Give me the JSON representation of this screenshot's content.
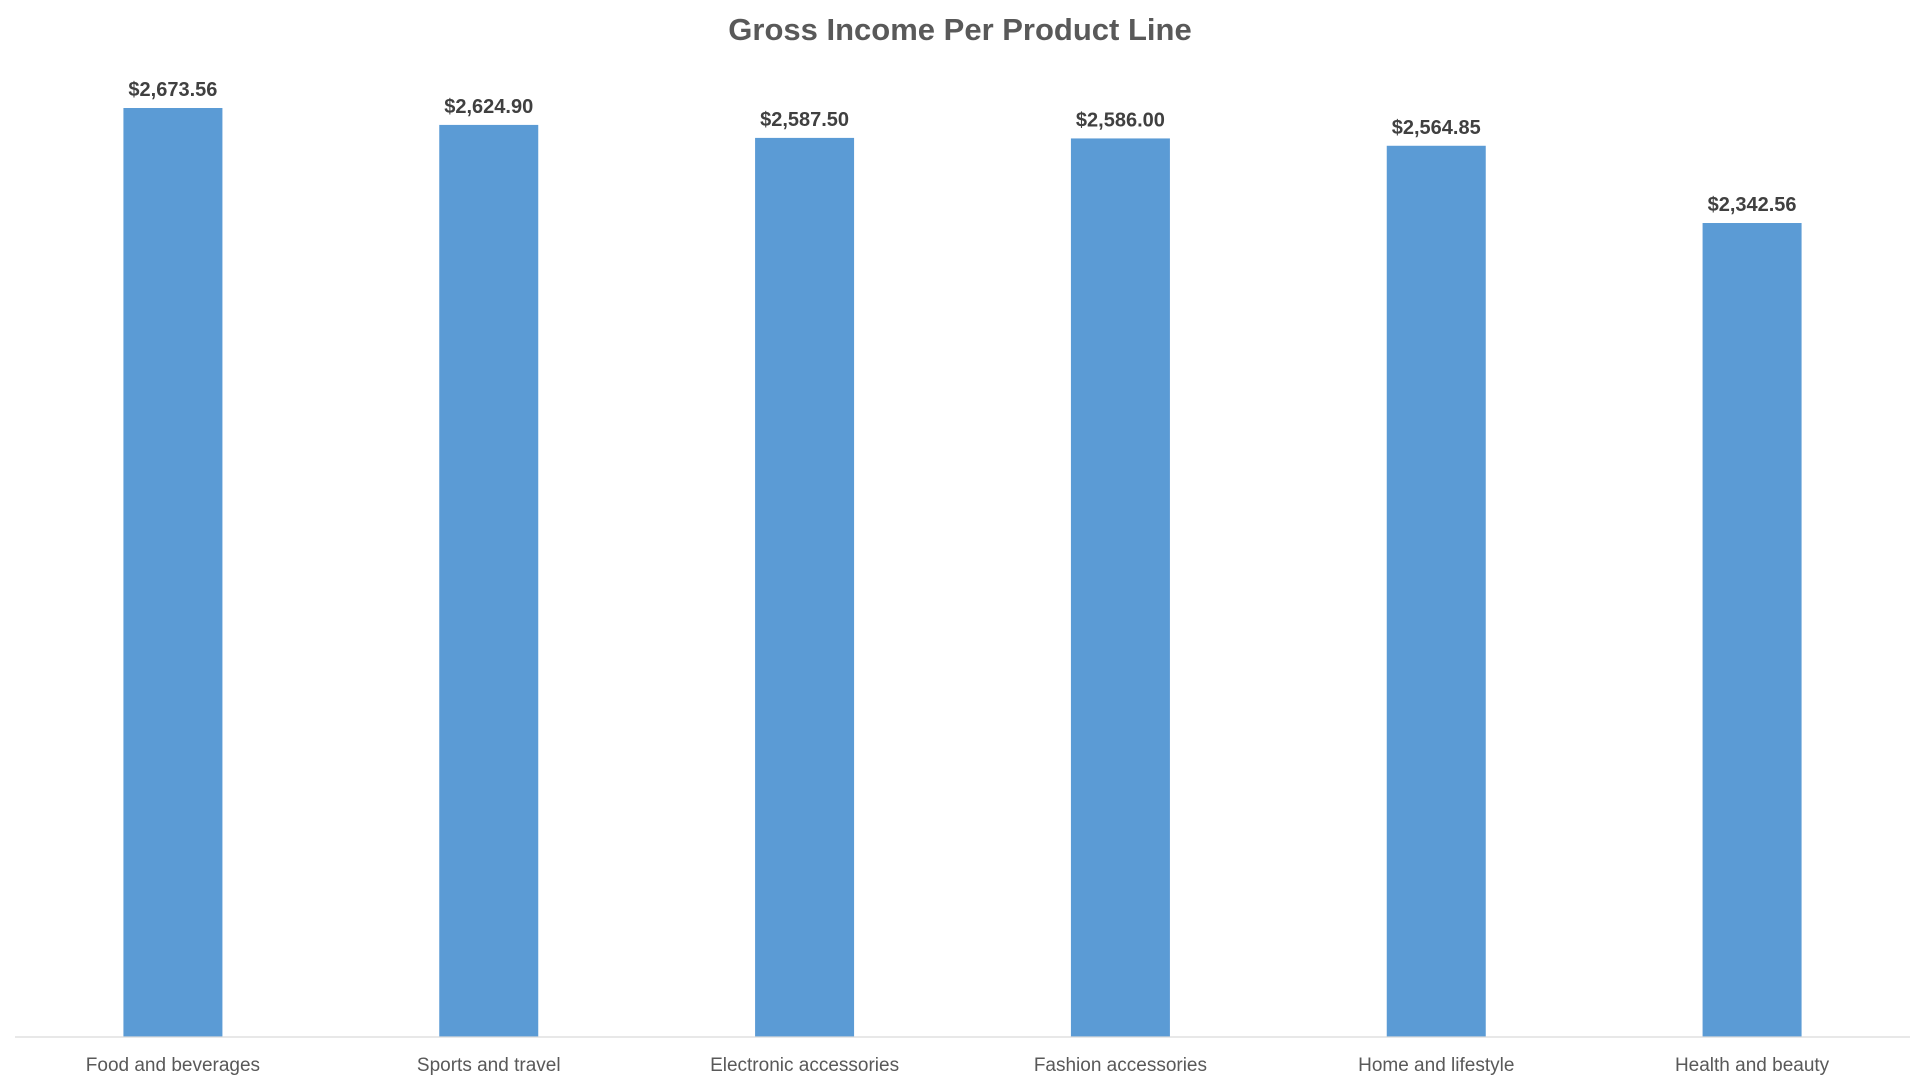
{
  "chart_data": {
    "type": "bar",
    "title": "Gross Income Per Product Line",
    "categories": [
      "Food and beverages",
      "Sports and travel",
      "Electronic accessories",
      "Fashion accessories",
      "Home and lifestyle",
      "Health and beauty"
    ],
    "values": [
      2673.56,
      2624.9,
      2587.5,
      2586.0,
      2564.85,
      2342.56
    ],
    "data_labels": [
      "$2,673.56",
      "$2,624.90",
      "$2,587.50",
      "$2,586.00",
      "$2,564.85",
      "$2,342.56"
    ],
    "xlabel": "",
    "ylabel": "",
    "ylim": [
      0,
      2700
    ],
    "grid": false,
    "legend": "none",
    "bar_color": "#5b9bd5"
  }
}
